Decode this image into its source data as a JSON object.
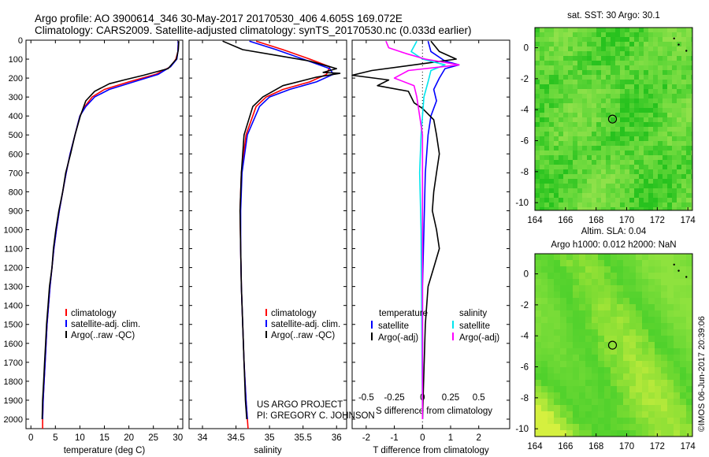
{
  "header": {
    "line1": "Argo profile: AO 3900614_346 30-May-2017 20170530_406 4.605S 169.072E",
    "line2": "Climatology: CARS2009. Satellite-adjusted climatology: synTS_20170530.nc (0.033d earlier)"
  },
  "colors": {
    "climatology": "#ff0000",
    "satellite": "#0000ff",
    "argo": "#000000",
    "sat_s": "#00e5ee",
    "argo_s": "#ff00ff"
  },
  "depth_axis": {
    "ylim": [
      2050,
      0
    ],
    "ticks": [
      0,
      100,
      200,
      300,
      400,
      500,
      600,
      700,
      800,
      900,
      1000,
      1100,
      1200,
      1300,
      1400,
      1500,
      1600,
      1700,
      1800,
      1900,
      2000
    ]
  },
  "credits": {
    "line1": "US ARGO PROJECT",
    "line2": "PI: GREGORY C. JOHNSON"
  },
  "timestamp": "©IMOS 06-Jun-2017 20:39:06",
  "chart_data": [
    {
      "type": "line",
      "xlabel": "temperature (deg C)",
      "ylabel": "",
      "xlim": [
        -1,
        31
      ],
      "ylim": [
        2050,
        0
      ],
      "xticks": [
        0,
        5,
        10,
        15,
        20,
        25,
        30
      ],
      "legend": [
        "climatology",
        "satellite-adj. clim.",
        "Argo(..raw -QC)"
      ],
      "series": [
        {
          "name": "climatology",
          "color": "#ff0000",
          "points": [
            [
              30.1,
              5
            ],
            [
              30,
              60
            ],
            [
              29.6,
              100
            ],
            [
              28.5,
              140
            ],
            [
              25.5,
              180
            ],
            [
              20,
              220
            ],
            [
              15,
              260
            ],
            [
              12.5,
              300
            ],
            [
              11,
              350
            ],
            [
              10,
              400
            ],
            [
              9,
              500
            ],
            [
              8,
              600
            ],
            [
              7.2,
              700
            ],
            [
              6.5,
              800
            ],
            [
              5.8,
              900
            ],
            [
              5.2,
              1000
            ],
            [
              4.7,
              1100
            ],
            [
              4.3,
              1200
            ],
            [
              3.9,
              1300
            ],
            [
              3.6,
              1400
            ],
            [
              3.3,
              1500
            ],
            [
              3.1,
              1600
            ],
            [
              2.9,
              1700
            ],
            [
              2.7,
              1800
            ],
            [
              2.5,
              1900
            ],
            [
              2.4,
              2000
            ],
            [
              2.4,
              2050
            ]
          ]
        },
        {
          "name": "satellite-adj. clim.",
          "color": "#0000ff",
          "points": [
            [
              30.1,
              5
            ],
            [
              30,
              60
            ],
            [
              29.8,
              100
            ],
            [
              28.5,
              140
            ],
            [
              26,
              180
            ],
            [
              21,
              220
            ],
            [
              16,
              260
            ],
            [
              13,
              300
            ],
            [
              11.2,
              350
            ],
            [
              10,
              400
            ],
            [
              9,
              500
            ],
            [
              8,
              600
            ],
            [
              7.2,
              700
            ],
            [
              6.5,
              800
            ],
            [
              5.8,
              900
            ],
            [
              5.2,
              1000
            ],
            [
              4.7,
              1100
            ],
            [
              4.3,
              1200
            ],
            [
              3.9,
              1300
            ],
            [
              3.6,
              1400
            ],
            [
              3.3,
              1500
            ],
            [
              3.1,
              1600
            ],
            [
              2.9,
              1700
            ],
            [
              2.7,
              1800
            ],
            [
              2.5,
              1900
            ],
            [
              2.4,
              2000
            ]
          ]
        },
        {
          "name": "Argo(..raw -QC)",
          "color": "#000000",
          "points": [
            [
              30.2,
              5
            ],
            [
              30.1,
              50
            ],
            [
              29.7,
              100
            ],
            [
              28,
              150
            ],
            [
              23,
              185
            ],
            [
              19,
              210
            ],
            [
              16,
              230
            ],
            [
              13,
              270
            ],
            [
              11.2,
              320
            ],
            [
              10.1,
              400
            ],
            [
              9,
              500
            ],
            [
              8.1,
              600
            ],
            [
              7.1,
              700
            ],
            [
              6.5,
              800
            ],
            [
              5.7,
              900
            ],
            [
              5.1,
              1000
            ],
            [
              4.6,
              1100
            ],
            [
              4.3,
              1200
            ],
            [
              3.8,
              1300
            ],
            [
              3.5,
              1400
            ],
            [
              3.2,
              1500
            ],
            [
              3,
              1600
            ],
            [
              2.8,
              1700
            ],
            [
              2.6,
              1800
            ],
            [
              2.4,
              1900
            ],
            [
              2.3,
              2000
            ]
          ]
        }
      ]
    },
    {
      "type": "line",
      "xlabel": "salinity",
      "ylabel": "",
      "xlim": [
        33.8,
        36.15
      ],
      "ylim": [
        2050,
        0
      ],
      "xticks": [
        34,
        34.5,
        35,
        35.5,
        36
      ],
      "legend": [
        "climatology",
        "satellite-adj. clim.",
        "Argo(..raw -QC)"
      ],
      "series": [
        {
          "name": "climatology",
          "color": "#ff0000",
          "points": [
            [
              34.8,
              5
            ],
            [
              35.2,
              50
            ],
            [
              35.6,
              100
            ],
            [
              35.9,
              140
            ],
            [
              35.85,
              180
            ],
            [
              35.6,
              220
            ],
            [
              35.2,
              260
            ],
            [
              34.95,
              300
            ],
            [
              34.8,
              350
            ],
            [
              34.65,
              500
            ],
            [
              34.58,
              700
            ],
            [
              34.56,
              900
            ],
            [
              34.57,
              1100
            ],
            [
              34.58,
              1300
            ],
            [
              34.6,
              1500
            ],
            [
              34.62,
              1700
            ],
            [
              34.65,
              1900
            ],
            [
              34.68,
              2050
            ]
          ]
        },
        {
          "name": "satellite-adj. clim.",
          "color": "#0000ff",
          "points": [
            [
              34.7,
              5
            ],
            [
              35.1,
              50
            ],
            [
              35.5,
              100
            ],
            [
              35.9,
              150
            ],
            [
              35.95,
              180
            ],
            [
              35.7,
              220
            ],
            [
              35.3,
              260
            ],
            [
              35,
              300
            ],
            [
              34.85,
              350
            ],
            [
              34.67,
              500
            ],
            [
              34.59,
              700
            ],
            [
              34.57,
              900
            ],
            [
              34.57,
              1100
            ],
            [
              34.58,
              1300
            ],
            [
              34.6,
              1500
            ],
            [
              34.62,
              1700
            ],
            [
              34.65,
              1900
            ],
            [
              34.67,
              2000
            ]
          ]
        },
        {
          "name": "Argo(..raw -QC)",
          "color": "#000000",
          "points": [
            [
              34.3,
              5
            ],
            [
              34.6,
              50
            ],
            [
              35.1,
              80
            ],
            [
              35.6,
              110
            ],
            [
              35.9,
              140
            ],
            [
              36,
              150
            ],
            [
              35.8,
              170
            ],
            [
              36.05,
              175
            ],
            [
              35.7,
              195
            ],
            [
              35.2,
              240
            ],
            [
              34.9,
              300
            ],
            [
              34.75,
              350
            ],
            [
              34.62,
              500
            ],
            [
              34.58,
              700
            ],
            [
              34.56,
              900
            ],
            [
              34.57,
              1100
            ],
            [
              34.58,
              1300
            ],
            [
              34.6,
              1500
            ],
            [
              34.62,
              1700
            ],
            [
              34.64,
              1900
            ],
            [
              34.66,
              2000
            ]
          ]
        }
      ]
    },
    {
      "type": "line",
      "xlabel": "T difference from climatology",
      "xlabel_top": "S difference from climatology",
      "ylabel": "",
      "xlim": [
        -2.5,
        3.1
      ],
      "ylim": [
        2050,
        0
      ],
      "xticks": [
        -2,
        -1,
        0,
        1,
        2
      ],
      "xtick_labels_top": [
        "-0.5",
        "-0.25",
        "0",
        "0.25",
        "0.5"
      ],
      "legend_titles": [
        "temperature",
        "salinity"
      ],
      "legend": [
        "satellite",
        "Argo(-adj)",
        "satellite",
        "Argo(-adj)"
      ],
      "series": [
        {
          "name": "satellite",
          "group": "temperature",
          "color": "#0000ff",
          "points": [
            [
              0.2,
              5
            ],
            [
              0.3,
              60
            ],
            [
              0.8,
              110
            ],
            [
              1.3,
              130
            ],
            [
              0.8,
              150
            ],
            [
              0.6,
              200
            ],
            [
              0.4,
              260
            ],
            [
              0.5,
              320
            ],
            [
              0.3,
              400
            ],
            [
              0.2,
              500
            ],
            [
              0.1,
              700
            ],
            [
              0.05,
              1000
            ],
            [
              0,
              1300
            ],
            [
              0,
              1600
            ],
            [
              0,
              2000
            ]
          ]
        },
        {
          "name": "Argo(-adj)",
          "group": "temperature",
          "color": "#000000",
          "points": [
            [
              0.3,
              5
            ],
            [
              0.6,
              60
            ],
            [
              1.2,
              100
            ],
            [
              0.2,
              120
            ],
            [
              -1.8,
              160
            ],
            [
              -2.5,
              185
            ],
            [
              -1.2,
              210
            ],
            [
              -1.6,
              240
            ],
            [
              -0.5,
              270
            ],
            [
              -0.3,
              330
            ],
            [
              0,
              360
            ],
            [
              0.4,
              420
            ],
            [
              0.5,
              500
            ],
            [
              0.6,
              600
            ],
            [
              0.5,
              700
            ],
            [
              0.4,
              800
            ],
            [
              0.35,
              900
            ],
            [
              0.5,
              1000
            ],
            [
              0.6,
              1100
            ],
            [
              0.4,
              1200
            ],
            [
              0.2,
              1300
            ],
            [
              0.1,
              1500
            ],
            [
              0,
              2000
            ]
          ]
        },
        {
          "name": "satellite",
          "group": "salinity",
          "color": "#00e5ee",
          "points": [
            [
              -0.2,
              5
            ],
            [
              -0.4,
              60
            ],
            [
              0,
              100
            ],
            [
              0.8,
              130
            ],
            [
              0.3,
              160
            ],
            [
              0.2,
              220
            ],
            [
              0.05,
              300
            ],
            [
              0,
              400
            ],
            [
              -0.05,
              500
            ],
            [
              -0.1,
              700
            ],
            [
              -0.05,
              1000
            ],
            [
              0,
              2000
            ]
          ]
        },
        {
          "name": "Argo(-adj)",
          "group": "salinity",
          "color": "#ff00ff",
          "points": [
            [
              -1.3,
              5
            ],
            [
              -1.2,
              40
            ],
            [
              -0.6,
              70
            ],
            [
              0.1,
              100
            ],
            [
              1.3,
              130
            ],
            [
              -0.5,
              160
            ],
            [
              -1,
              200
            ],
            [
              -0.3,
              240
            ],
            [
              -0.2,
              300
            ],
            [
              -0.1,
              400
            ],
            [
              0,
              500
            ],
            [
              0,
              2000
            ]
          ]
        }
      ]
    },
    {
      "type": "heatmap",
      "title": "sat. SST: 30 Argo: 30.1",
      "xlim": [
        164,
        174.3
      ],
      "ylim": [
        -10.5,
        1.3
      ],
      "xticks": [
        164,
        166,
        168,
        170,
        172,
        174
      ],
      "yticks": [
        0,
        -2,
        -4,
        -6,
        -8,
        -10
      ],
      "marker": {
        "lon": 169.072,
        "lat": -4.605
      },
      "palette": [
        "#66d83a",
        "#27c21e",
        "#8fe14a"
      ]
    },
    {
      "type": "heatmap",
      "title": "Altim. SLA: 0.04",
      "subtitle": "Argo h1000: 0.012 h2000: NaN",
      "xlim": [
        164,
        174.3
      ],
      "ylim": [
        -10.5,
        1.3
      ],
      "xticks": [
        164,
        166,
        168,
        170,
        172,
        174
      ],
      "yticks": [
        0,
        -2,
        -4,
        -6,
        -8,
        -10
      ],
      "marker": {
        "lon": 169.072,
        "lat": -4.605
      },
      "palette": [
        "#4fd12c",
        "#8ee23e",
        "#d5f03f"
      ]
    }
  ]
}
